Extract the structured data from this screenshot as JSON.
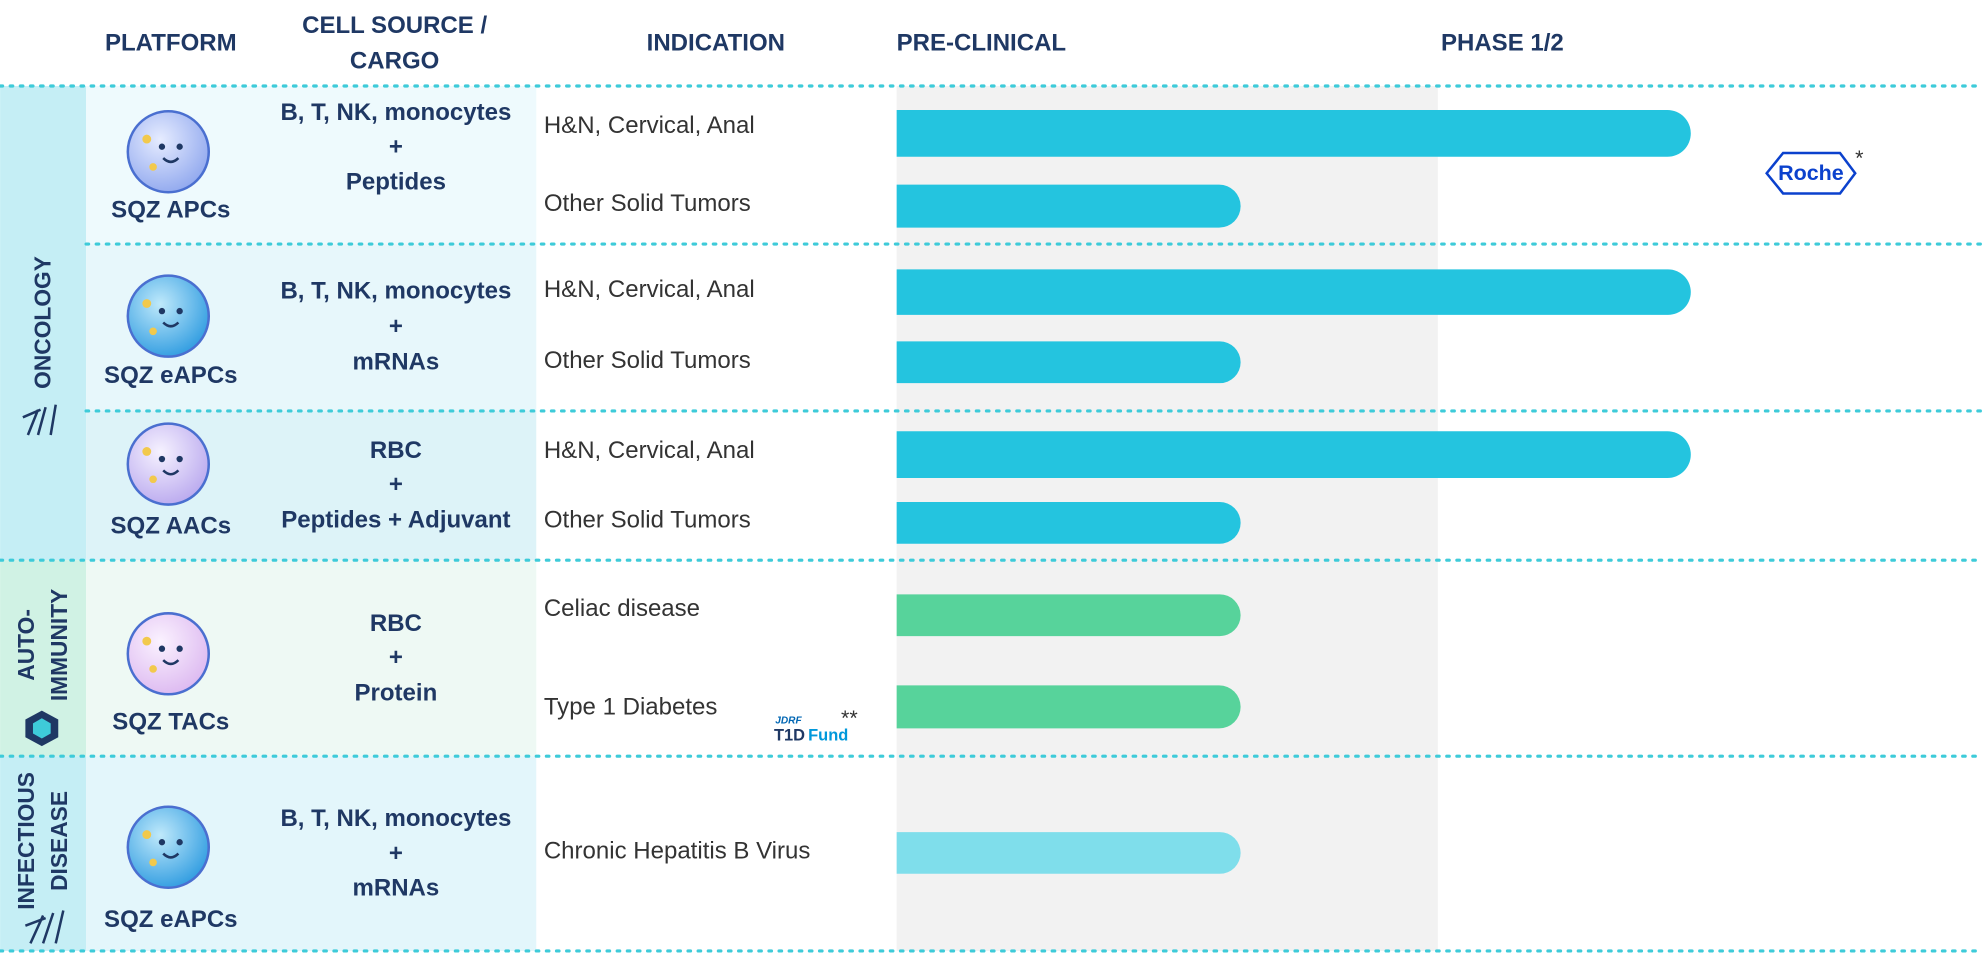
{
  "header": {
    "platform": "PLATFORM",
    "cell_source": [
      "CELL SOURCE /",
      "CARGO"
    ],
    "indication": "INDICATION",
    "preclinical": "PRE-CLINICAL",
    "phase": "PHASE 1/2"
  },
  "areas": [
    {
      "name": [
        "ONCOLOGY"
      ]
    },
    {
      "name": [
        "AUTO-",
        "IMMUNITY"
      ]
    },
    {
      "name": [
        "INFECTIOUS",
        "DISEASE"
      ]
    }
  ],
  "programs": [
    {
      "platform": "SQZ APCs",
      "cargo": [
        "B, T, NK, monocytes",
        "+",
        "Peptides"
      ],
      "indications": [
        "H&N, Cervical, Anal",
        "Other Solid Tumors"
      ]
    },
    {
      "platform": "SQZ eAPCs",
      "cargo": [
        "B, T, NK, monocytes",
        "+",
        "mRNAs"
      ],
      "indications": [
        "H&N, Cervical, Anal",
        "Other Solid Tumors"
      ]
    },
    {
      "platform": "SQZ AACs",
      "cargo": [
        "RBC",
        "+",
        "Peptides + Adjuvant"
      ],
      "indications": [
        "H&N, Cervical, Anal",
        "Other Solid Tumors"
      ]
    },
    {
      "platform": "SQZ TACs",
      "cargo": [
        "RBC",
        "+",
        "Protein"
      ],
      "indications": [
        "Celiac disease",
        "Type 1 Diabetes"
      ]
    },
    {
      "platform": "SQZ eAPCs",
      "cargo": [
        "B, T, NK, monocytes",
        "+",
        "mRNAs"
      ],
      "indications": [
        "Chronic Hepatitis B Virus"
      ]
    }
  ],
  "partners": {
    "roche": "Roche",
    "roche_mark": "*",
    "jdrf": "JDRF",
    "t1d": "T1D",
    "fund": "Fund",
    "jdrf_mark": "**"
  }
}
